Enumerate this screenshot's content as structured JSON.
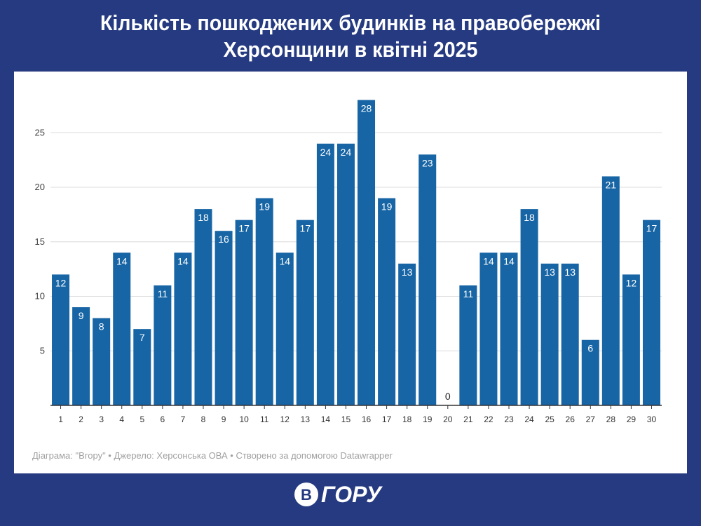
{
  "title_line1": "Кількість пошкоджених будинків на правобережжі",
  "title_line2": "Херсонщини в квітні 2025",
  "footer": "Діаграма: \"Вгору\" • Джерело: Херсонська ОВА • Створено за допомогою Datawrapper",
  "logo_text": "ВГОРУ",
  "colors": {
    "background": "#253a80",
    "bar": "#1765a5",
    "card": "#ffffff"
  },
  "chart_data": {
    "type": "bar",
    "categories": [
      "1",
      "2",
      "3",
      "4",
      "5",
      "6",
      "7",
      "8",
      "9",
      "10",
      "11",
      "12",
      "13",
      "14",
      "15",
      "16",
      "17",
      "18",
      "19",
      "20",
      "21",
      "22",
      "23",
      "24",
      "25",
      "26",
      "27",
      "28",
      "29",
      "30"
    ],
    "values": [
      12,
      9,
      8,
      14,
      7,
      11,
      14,
      18,
      16,
      17,
      19,
      14,
      17,
      24,
      24,
      28,
      19,
      13,
      23,
      0,
      11,
      14,
      14,
      18,
      13,
      13,
      6,
      21,
      12,
      17
    ],
    "yticks": [
      5,
      10,
      15,
      20,
      25
    ],
    "ylim": [
      0,
      28
    ],
    "grid": true,
    "data_labels": true
  }
}
